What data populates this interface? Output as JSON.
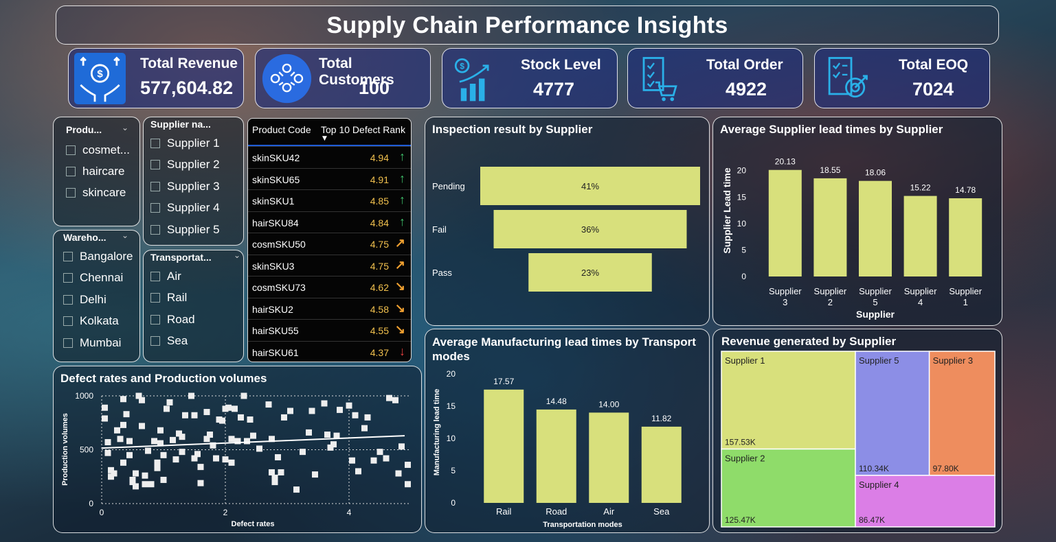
{
  "title": "Supply Chain Performance Insights",
  "kpis": [
    {
      "label": "Total Revenue",
      "value": "577,604.82",
      "icon": "revenue-hands-icon"
    },
    {
      "label": "Total Customers",
      "value": "100",
      "icon": "customers-group-icon"
    },
    {
      "label": "Stock Level",
      "value": "4777",
      "icon": "stock-growth-icon"
    },
    {
      "label": "Total Order",
      "value": "4922",
      "icon": "order-checklist-cart-icon"
    },
    {
      "label": "Total EOQ",
      "value": "7024",
      "icon": "eoq-target-icon"
    }
  ],
  "slicers": {
    "product": {
      "title": "Produ...",
      "options": [
        "cosmet...",
        "haircare",
        "skincare"
      ]
    },
    "supplier": {
      "title": "Supplier na...",
      "options": [
        "Supplier 1",
        "Supplier 2",
        "Supplier 3",
        "Supplier 4",
        "Supplier 5"
      ]
    },
    "warehouse": {
      "title": "Wareho...",
      "options": [
        "Bangalore",
        "Chennai",
        "Delhi",
        "Kolkata",
        "Mumbai"
      ]
    },
    "transport": {
      "title": "Transportat...",
      "options": [
        "Air",
        "Rail",
        "Road",
        "Sea"
      ]
    }
  },
  "defect_table": {
    "headers": [
      "Product Code",
      "Top 10 Defect Rank"
    ],
    "rows": [
      {
        "code": "skinSKU42",
        "value": "4.94",
        "trend": "up",
        "color": "#3fbf6a"
      },
      {
        "code": "skinSKU65",
        "value": "4.91",
        "trend": "up",
        "color": "#3fbf6a"
      },
      {
        "code": "skinSKU1",
        "value": "4.85",
        "trend": "up",
        "color": "#3fbf6a"
      },
      {
        "code": "hairSKU84",
        "value": "4.84",
        "trend": "up",
        "color": "#3fbf6a"
      },
      {
        "code": "cosmSKU50",
        "value": "4.75",
        "trend": "up-right",
        "color": "#f0a030"
      },
      {
        "code": "skinSKU3",
        "value": "4.75",
        "trend": "up-right",
        "color": "#f0a030"
      },
      {
        "code": "cosmSKU73",
        "value": "4.62",
        "trend": "down-right",
        "color": "#f0a030"
      },
      {
        "code": "hairSKU2",
        "value": "4.58",
        "trend": "down-right",
        "color": "#f0a030"
      },
      {
        "code": "hairSKU55",
        "value": "4.55",
        "trend": "down-right",
        "color": "#f0a030"
      },
      {
        "code": "hairSKU61",
        "value": "4.37",
        "trend": "down",
        "color": "#e84040"
      }
    ]
  },
  "chart_data": [
    {
      "type": "funnel",
      "title": "Inspection result by Supplier",
      "categories": [
        "Pending",
        "Fail",
        "Pass"
      ],
      "values": [
        41,
        36,
        23
      ],
      "labels": [
        "41%",
        "36%",
        "23%"
      ],
      "color": "#d8e07c"
    },
    {
      "type": "bar",
      "title": "Average Supplier lead times by Supplier",
      "categories": [
        "Supplier 3",
        "Supplier 2",
        "Supplier 5",
        "Supplier 4",
        "Supplier 1"
      ],
      "values": [
        20.13,
        18.55,
        18.06,
        15.22,
        14.78
      ],
      "labels": [
        "20.13",
        "18.55",
        "18.06",
        "15.22",
        "14.78"
      ],
      "xlabel": "Supplier",
      "ylabel": "Supplier Lead time",
      "yticks": [
        "0",
        "5",
        "10",
        "15",
        "20"
      ],
      "ylim": [
        0,
        21
      ],
      "color": "#d8e07c"
    },
    {
      "type": "bar",
      "title": "Average Manufacturing lead times by Transport modes",
      "categories": [
        "Rail",
        "Road",
        "Air",
        "Sea"
      ],
      "values": [
        17.57,
        14.48,
        14.0,
        11.82
      ],
      "labels": [
        "17.57",
        "14.48",
        "14.00",
        "11.82"
      ],
      "xlabel": "Transportation modes",
      "ylabel": "Manufacturing lead time",
      "yticks": [
        "0",
        "5",
        "10",
        "15",
        "20"
      ],
      "ylim": [
        0,
        20
      ],
      "color": "#d8e07c"
    },
    {
      "type": "treemap",
      "title": "Revenue generated by Supplier",
      "items": [
        {
          "name": "Supplier 1",
          "value": 157.53,
          "label": "157.53K",
          "color": "#d8e07c"
        },
        {
          "name": "Supplier 2",
          "value": 125.47,
          "label": "125.47K",
          "color": "#8fdc6a"
        },
        {
          "name": "Supplier 5",
          "value": 110.34,
          "label": "110.34K",
          "color": "#8c8ee6"
        },
        {
          "name": "Supplier 3",
          "value": 97.8,
          "label": "97.80K",
          "color": "#ee8d5e"
        },
        {
          "name": "Supplier 4",
          "value": 86.47,
          "label": "86.47K",
          "color": "#db7ee6"
        }
      ]
    },
    {
      "type": "scatter",
      "title": "Defect rates and Production volumes",
      "xlabel": "Defect rates",
      "ylabel": "Production volumes",
      "xticks": [
        "0",
        "2",
        "4"
      ],
      "yticks": [
        "0",
        "500",
        "1000"
      ],
      "xlim": [
        0,
        5
      ],
      "ylim": [
        0,
        1000
      ],
      "trend": {
        "x": [
          0,
          4.9
        ],
        "y": [
          515,
          630
        ]
      },
      "points": [
        [
          0.05,
          890
        ],
        [
          0.05,
          790
        ],
        [
          0.1,
          570
        ],
        [
          0.1,
          470
        ],
        [
          0.15,
          310
        ],
        [
          0.15,
          250
        ],
        [
          0.2,
          280
        ],
        [
          0.25,
          680
        ],
        [
          0.3,
          600
        ],
        [
          0.35,
          970
        ],
        [
          0.35,
          730
        ],
        [
          0.35,
          380
        ],
        [
          0.4,
          830
        ],
        [
          0.45,
          580
        ],
        [
          0.45,
          450
        ],
        [
          0.5,
          220
        ],
        [
          0.5,
          200
        ],
        [
          0.55,
          280
        ],
        [
          0.55,
          160
        ],
        [
          0.6,
          1000
        ],
        [
          0.65,
          960
        ],
        [
          0.65,
          720
        ],
        [
          0.7,
          260
        ],
        [
          0.7,
          180
        ],
        [
          0.75,
          490
        ],
        [
          0.8,
          180
        ],
        [
          0.85,
          580
        ],
        [
          0.9,
          380
        ],
        [
          0.9,
          330
        ],
        [
          0.95,
          680
        ],
        [
          0.95,
          560
        ],
        [
          1.0,
          450
        ],
        [
          1.0,
          220
        ],
        [
          1.05,
          880
        ],
        [
          1.1,
          940
        ],
        [
          1.15,
          590
        ],
        [
          1.2,
          410
        ],
        [
          1.25,
          650
        ],
        [
          1.3,
          620
        ],
        [
          1.3,
          480
        ],
        [
          1.35,
          820
        ],
        [
          1.45,
          1000
        ],
        [
          1.5,
          820
        ],
        [
          1.5,
          420
        ],
        [
          1.55,
          460
        ],
        [
          1.6,
          340
        ],
        [
          1.6,
          190
        ],
        [
          1.7,
          850
        ],
        [
          1.7,
          600
        ],
        [
          1.75,
          640
        ],
        [
          1.8,
          540
        ],
        [
          1.85,
          420
        ],
        [
          1.9,
          780
        ],
        [
          1.95,
          770
        ],
        [
          2.0,
          880
        ],
        [
          2.0,
          410
        ],
        [
          2.05,
          890
        ],
        [
          2.1,
          600
        ],
        [
          2.1,
          380
        ],
        [
          2.15,
          880
        ],
        [
          2.2,
          580
        ],
        [
          2.25,
          800
        ],
        [
          2.3,
          1000
        ],
        [
          2.35,
          580
        ],
        [
          2.4,
          780
        ],
        [
          2.45,
          630
        ],
        [
          2.55,
          510
        ],
        [
          2.7,
          920
        ],
        [
          2.75,
          600
        ],
        [
          2.75,
          290
        ],
        [
          2.8,
          240
        ],
        [
          2.8,
          200
        ],
        [
          2.85,
          430
        ],
        [
          2.9,
          290
        ],
        [
          2.95,
          800
        ],
        [
          3.05,
          860
        ],
        [
          3.15,
          130
        ],
        [
          3.25,
          480
        ],
        [
          3.35,
          660
        ],
        [
          3.4,
          860
        ],
        [
          3.45,
          270
        ],
        [
          3.6,
          930
        ],
        [
          3.65,
          640
        ],
        [
          3.7,
          520
        ],
        [
          3.75,
          550
        ],
        [
          3.8,
          630
        ],
        [
          3.85,
          870
        ],
        [
          4.0,
          910
        ],
        [
          4.05,
          400
        ],
        [
          4.1,
          820
        ],
        [
          4.15,
          300
        ],
        [
          4.25,
          700
        ],
        [
          4.3,
          800
        ],
        [
          4.4,
          400
        ],
        [
          4.5,
          480
        ],
        [
          4.6,
          420
        ],
        [
          4.65,
          980
        ],
        [
          4.75,
          960
        ],
        [
          4.8,
          280
        ],
        [
          4.85,
          530
        ],
        [
          4.95,
          360
        ],
        [
          4.95,
          180
        ]
      ]
    }
  ]
}
